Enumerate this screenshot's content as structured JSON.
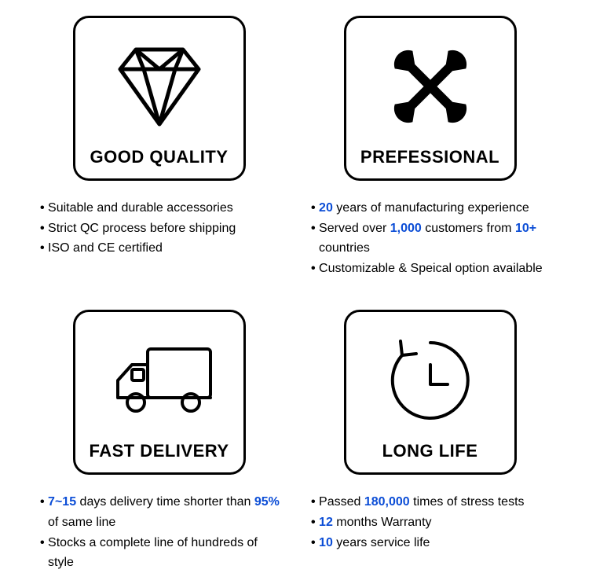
{
  "accent_color": "#0b4dd6",
  "text_color": "#000000",
  "border_color": "#000000",
  "card_border_radius": 20,
  "title_fontsize": 22,
  "bullet_fontsize": 16,
  "cards": {
    "good_quality": {
      "title": "GOOD QUALITY",
      "icon": "diamond-icon",
      "bullets": [
        {
          "segments": [
            {
              "t": "Suitable and durable accessories"
            }
          ]
        },
        {
          "segments": [
            {
              "t": "Strict QC process before shipping"
            }
          ]
        },
        {
          "segments": [
            {
              "t": "ISO and CE certified"
            }
          ]
        }
      ]
    },
    "prefessional": {
      "title": "PREFESSIONAL",
      "icon": "wrench-cross-icon",
      "bullets": [
        {
          "segments": [
            {
              "t": "20",
              "hl": true
            },
            {
              "t": " years of manufacturing experience"
            }
          ]
        },
        {
          "segments": [
            {
              "t": "Served over "
            },
            {
              "t": "1,000",
              "hl": true
            },
            {
              "t": " customers from "
            },
            {
              "t": "10+",
              "hl": true
            },
            {
              "t": " countries"
            }
          ]
        },
        {
          "segments": [
            {
              "t": "Customizable & Speical option available"
            }
          ]
        }
      ]
    },
    "fast_delivery": {
      "title": "FAST DELIVERY",
      "icon": "truck-icon",
      "bullets": [
        {
          "segments": [
            {
              "t": "7~15",
              "hl": true
            },
            {
              "t": " days delivery time shorter than "
            },
            {
              "t": "95%",
              "hl": true
            },
            {
              "t": " of same line"
            }
          ]
        },
        {
          "segments": [
            {
              "t": "Stocks a complete line of hundreds of style"
            }
          ]
        }
      ]
    },
    "long_life": {
      "title": "LONG LIFE",
      "icon": "clock-refresh-icon",
      "bullets": [
        {
          "segments": [
            {
              "t": "Passed "
            },
            {
              "t": "180,000",
              "hl": true
            },
            {
              "t": " times of stress tests"
            }
          ]
        },
        {
          "segments": [
            {
              "t": "12",
              "hl": true
            },
            {
              "t": " months Warranty"
            }
          ]
        },
        {
          "segments": [
            {
              "t": "10",
              "hl": true
            },
            {
              "t": " years service life"
            }
          ]
        }
      ]
    }
  }
}
